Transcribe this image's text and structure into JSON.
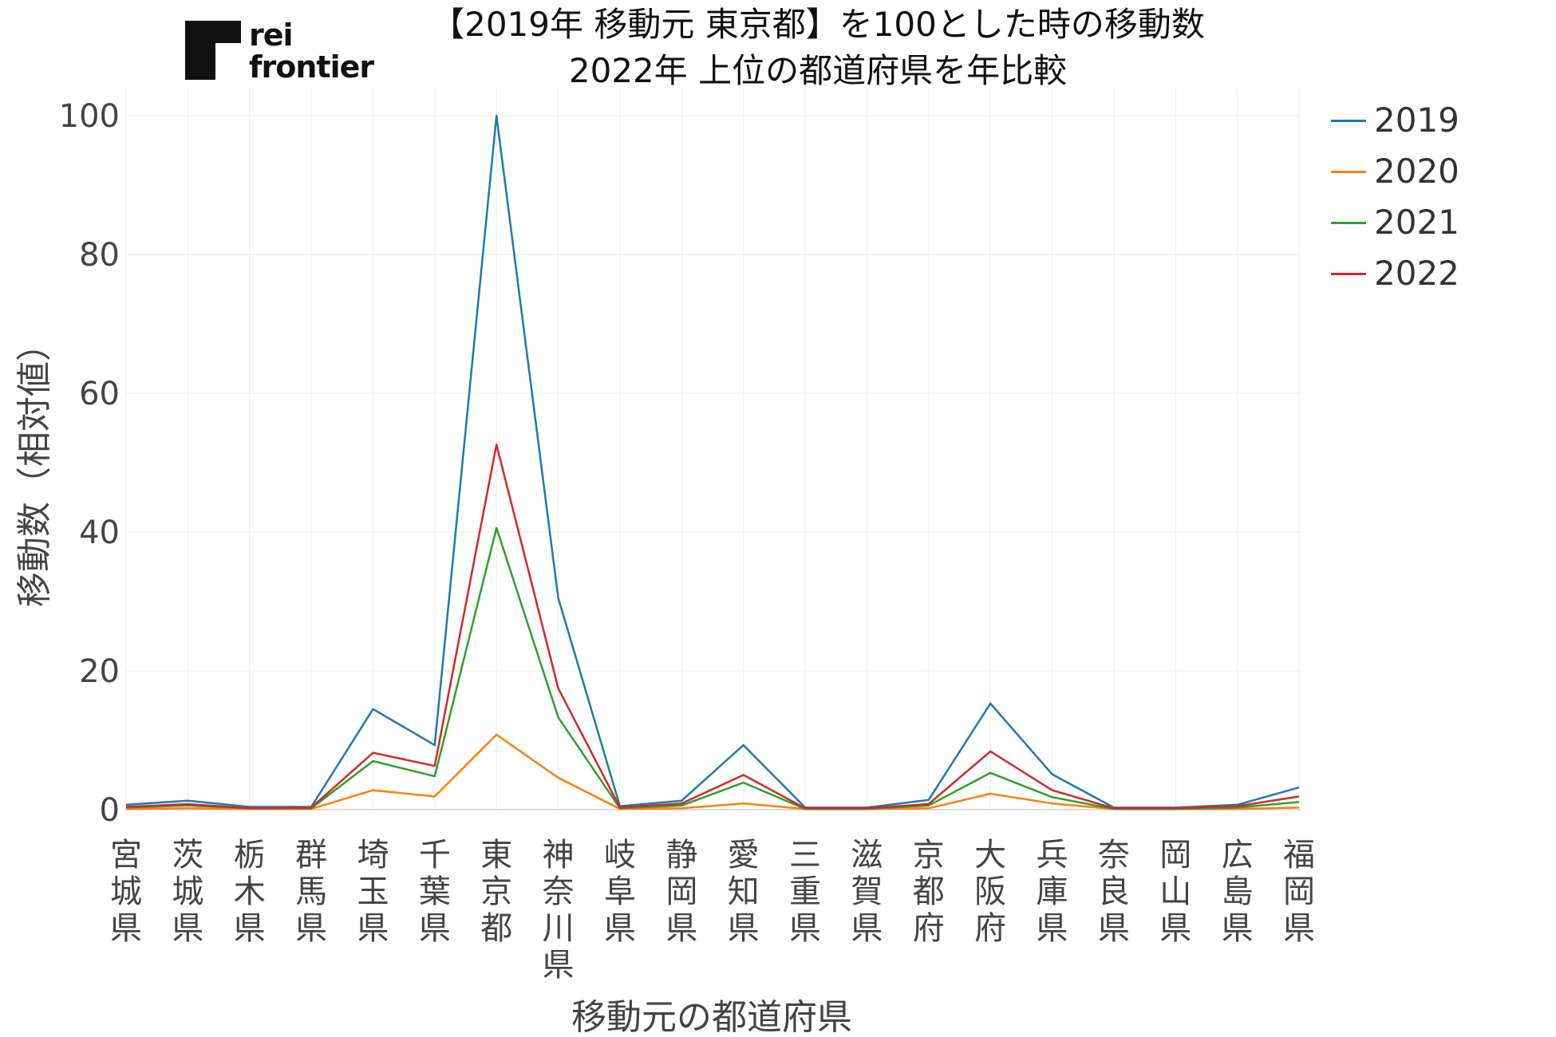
{
  "logo": {
    "line1": "rei",
    "line2": "frontier"
  },
  "chart_data": {
    "type": "line",
    "title": "【2019年 移動元 東京都】を100とした時の移動数",
    "subtitle": "2022年 上位の都道府県を年比較",
    "xlabel": "移動元の都道府県",
    "ylabel": "移動数（相対値）",
    "ylim": [
      0,
      100
    ],
    "yticks": [
      0,
      20,
      40,
      60,
      80,
      100
    ],
    "grid": true,
    "legend_position": "top-right",
    "categories": [
      "宮城県",
      "茨城県",
      "栃木県",
      "群馬県",
      "埼玉県",
      "千葉県",
      "東京都",
      "神奈川県",
      "岐阜県",
      "静岡県",
      "愛知県",
      "三重県",
      "滋賀県",
      "京都府",
      "大阪府",
      "兵庫県",
      "奈良県",
      "岡山県",
      "広島県",
      "福岡県"
    ],
    "series": [
      {
        "name": "2019",
        "color": "#1f77b4",
        "values": [
          0.7,
          1.3,
          0.4,
          0.4,
          14.5,
          9.3,
          100,
          30.5,
          0.5,
          1.3,
          9.3,
          0.3,
          0.3,
          1.4,
          15.3,
          5.1,
          0.3,
          0.3,
          0.7,
          3.2
        ]
      },
      {
        "name": "2020",
        "color": "#ff7f0e",
        "values": [
          0.1,
          0.2,
          0.1,
          0.1,
          2.8,
          1.9,
          10.8,
          4.6,
          0.1,
          0.2,
          0.9,
          0.1,
          0.1,
          0.2,
          2.3,
          0.9,
          0.1,
          0.1,
          0.1,
          0.3
        ]
      },
      {
        "name": "2021",
        "color": "#2ca02c",
        "values": [
          0.3,
          0.6,
          0.2,
          0.2,
          7.0,
          4.8,
          40.6,
          13.3,
          0.2,
          0.6,
          3.9,
          0.1,
          0.1,
          0.6,
          5.3,
          1.8,
          0.1,
          0.1,
          0.3,
          1.1
        ]
      },
      {
        "name": "2022",
        "color": "#d62728",
        "values": [
          0.4,
          0.8,
          0.2,
          0.3,
          8.2,
          6.3,
          52.6,
          17.5,
          0.3,
          0.9,
          5.0,
          0.2,
          0.2,
          0.8,
          8.4,
          2.8,
          0.2,
          0.2,
          0.5,
          1.9
        ]
      }
    ]
  }
}
